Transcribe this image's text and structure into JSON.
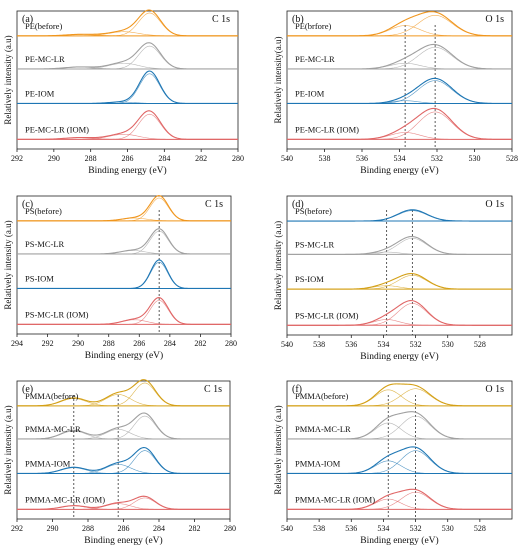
{
  "chart_data": [
    {
      "id": "a",
      "type": "line",
      "panel_label": "(a)",
      "title": "C 1s",
      "xlabel": "Binding energy (eV)",
      "ylabel": "Relatively intensity (a.u)",
      "xlim": [
        292,
        280
      ],
      "xticks": [
        292,
        290,
        288,
        286,
        284,
        282,
        280
      ],
      "series": [
        {
          "name": "PE(before)",
          "color": "#f0961e",
          "peaks": [
            [
              284.8,
              0.6,
              1.0
            ],
            [
              286.2,
              0.8,
              0.18
            ],
            [
              288.5,
              0.8,
              0.06
            ]
          ]
        },
        {
          "name": "PE-MC-LR",
          "color": "#a0a0a0",
          "peaks": [
            [
              284.8,
              0.6,
              1.0
            ],
            [
              286.2,
              0.8,
              0.25
            ],
            [
              288.6,
              0.8,
              0.08
            ]
          ]
        },
        {
          "name": "PE-IOM",
          "color": "#1f77b4",
          "peaks": [
            [
              284.8,
              0.55,
              1.3
            ],
            [
              286.3,
              0.7,
              0.06
            ]
          ]
        },
        {
          "name": "PE-MC-LR (IOM)",
          "color": "#e06666",
          "peaks": [
            [
              284.8,
              0.6,
              1.1
            ],
            [
              286.2,
              0.8,
              0.22
            ],
            [
              288.6,
              0.8,
              0.07
            ]
          ]
        }
      ]
    },
    {
      "id": "b",
      "type": "line",
      "panel_label": "(b)",
      "title": "O 1s",
      "xlabel": "Binding energy (eV)",
      "ylabel": "Relatively intensity(a.u)",
      "xlim": [
        540,
        528
      ],
      "xticks": [
        540,
        538,
        536,
        534,
        532,
        530,
        528
      ],
      "series": [
        {
          "name": "PE(brfore)",
          "color": "#f0961e",
          "peaks": [
            [
              532.1,
              0.9,
              0.9
            ],
            [
              533.7,
              0.8,
              0.45
            ]
          ]
        },
        {
          "name": "PE-MC-LR",
          "color": "#a0a0a0",
          "peaks": [
            [
              532.1,
              0.9,
              0.95
            ],
            [
              533.7,
              0.8,
              0.25
            ]
          ]
        },
        {
          "name": "PE-IOM",
          "color": "#1f77b4",
          "peaks": [
            [
              532.1,
              0.9,
              1.0
            ],
            [
              533.7,
              0.7,
              0.12
            ]
          ]
        },
        {
          "name": "PE-MC-LR (IOM)",
          "color": "#e06666",
          "peaks": [
            [
              532.1,
              0.9,
              1.2
            ],
            [
              533.7,
              0.8,
              0.3
            ]
          ]
        }
      ],
      "reference_lines": [
        533.7,
        532.1
      ]
    },
    {
      "id": "c",
      "type": "line",
      "panel_label": "(c)",
      "title": "C 1s",
      "xlabel": "Binding energy (eV)",
      "ylabel": "Relatively intensity (a.u)",
      "xlim": [
        294,
        280
      ],
      "xticks": [
        294,
        292,
        290,
        288,
        286,
        284,
        282,
        280
      ],
      "series": [
        {
          "name": "PS(before)",
          "color": "#f0961e",
          "peaks": [
            [
              284.7,
              0.6,
              1.0
            ],
            [
              286.3,
              0.8,
              0.12
            ]
          ]
        },
        {
          "name": "PS-MC-LR",
          "color": "#a0a0a0",
          "peaks": [
            [
              284.7,
              0.6,
              1.0
            ],
            [
              286.4,
              0.8,
              0.15
            ]
          ]
        },
        {
          "name": "PS-IOM",
          "color": "#1f77b4",
          "peaks": [
            [
              284.7,
              0.55,
              1.15
            ]
          ]
        },
        {
          "name": "PS-MC-LR (IOM)",
          "color": "#e06666",
          "peaks": [
            [
              284.7,
              0.6,
              1.05
            ],
            [
              286.3,
              0.8,
              0.2
            ]
          ]
        }
      ],
      "reference_lines": [
        284.7
      ]
    },
    {
      "id": "d",
      "type": "line",
      "panel_label": "(d)",
      "title": "O 1s",
      "xlabel": "Binding energy (eV)",
      "ylabel": "Relatively intensity (a.u)",
      "xlim": [
        540,
        526
      ],
      "xticks": [
        540,
        538,
        536,
        534,
        532,
        530,
        528
      ],
      "series": [
        {
          "name": "PS(before)",
          "color": "#1f77b4",
          "peaks": [
            [
              532.2,
              0.9,
              0.45
            ]
          ]
        },
        {
          "name": "PS-MC-LR",
          "color": "#a0a0a0",
          "peaks": [
            [
              532.2,
              0.9,
              0.7
            ],
            [
              533.8,
              0.8,
              0.1
            ]
          ]
        },
        {
          "name": "PS-IOM",
          "color": "#d4a017",
          "peaks": [
            [
              532.2,
              0.9,
              0.6
            ],
            [
              533.8,
              0.8,
              0.15
            ]
          ]
        },
        {
          "name": "PS-MC-LR (IOM)",
          "color": "#e06666",
          "peaks": [
            [
              532.2,
              0.9,
              0.95
            ],
            [
              533.8,
              0.8,
              0.25
            ]
          ]
        }
      ],
      "reference_lines": [
        533.8,
        532.2
      ]
    },
    {
      "id": "e",
      "type": "line",
      "panel_label": "(e)",
      "title": "C 1s",
      "xlabel": "Binding energy (eV)",
      "ylabel": "Relatively intensity (a.u)",
      "xlim": [
        292,
        280
      ],
      "xticks": [
        292,
        290,
        288,
        286,
        284,
        282,
        280
      ],
      "series": [
        {
          "name": "PMMA(before)",
          "color": "#d4a017",
          "peaks": [
            [
              284.8,
              0.6,
              1.0
            ],
            [
              286.3,
              0.7,
              0.5
            ],
            [
              288.8,
              0.7,
              0.32
            ]
          ]
        },
        {
          "name": "PMMA-MC-LR",
          "color": "#a0a0a0",
          "peaks": [
            [
              284.8,
              0.6,
              1.0
            ],
            [
              286.3,
              0.7,
              0.42
            ],
            [
              288.8,
              0.7,
              0.35
            ]
          ]
        },
        {
          "name": "PMMA-IOM",
          "color": "#1f77b4",
          "peaks": [
            [
              284.8,
              0.6,
              1.0
            ],
            [
              286.3,
              0.7,
              0.4
            ],
            [
              288.8,
              0.7,
              0.25
            ]
          ]
        },
        {
          "name": "PMMA-MC-LR (IOM)",
          "color": "#e06666",
          "peaks": [
            [
              284.8,
              0.6,
              0.5
            ],
            [
              286.3,
              0.7,
              0.25
            ],
            [
              288.8,
              0.7,
              0.15
            ]
          ]
        }
      ],
      "reference_lines": [
        288.8,
        286.3
      ]
    },
    {
      "id": "f",
      "type": "line",
      "panel_label": "(f)",
      "title": "O 1s",
      "xlabel": "Binding energy (eV)",
      "ylabel": "Relatively intensity (a.u)",
      "xlim": [
        540,
        526
      ],
      "xticks": [
        540,
        538,
        536,
        534,
        532,
        530,
        528
      ],
      "series": [
        {
          "name": "PMMA(before)",
          "color": "#d4a017",
          "peaks": [
            [
              532.0,
              0.9,
              0.75
            ],
            [
              533.7,
              0.8,
              0.7
            ]
          ]
        },
        {
          "name": "PMMA-MC-LR",
          "color": "#a0a0a0",
          "peaks": [
            [
              532.0,
              0.9,
              1.0
            ],
            [
              533.7,
              0.8,
              0.7
            ]
          ]
        },
        {
          "name": "PMMA-IOM",
          "color": "#1f77b4",
          "peaks": [
            [
              532.0,
              0.9,
              1.0
            ],
            [
              533.7,
              0.8,
              0.55
            ]
          ]
        },
        {
          "name": "PMMA-MC-LR (IOM)",
          "color": "#e06666",
          "peaks": [
            [
              532.0,
              0.9,
              0.75
            ],
            [
              533.7,
              0.8,
              0.45
            ]
          ]
        }
      ],
      "reference_lines": [
        533.7,
        532.0
      ]
    }
  ]
}
